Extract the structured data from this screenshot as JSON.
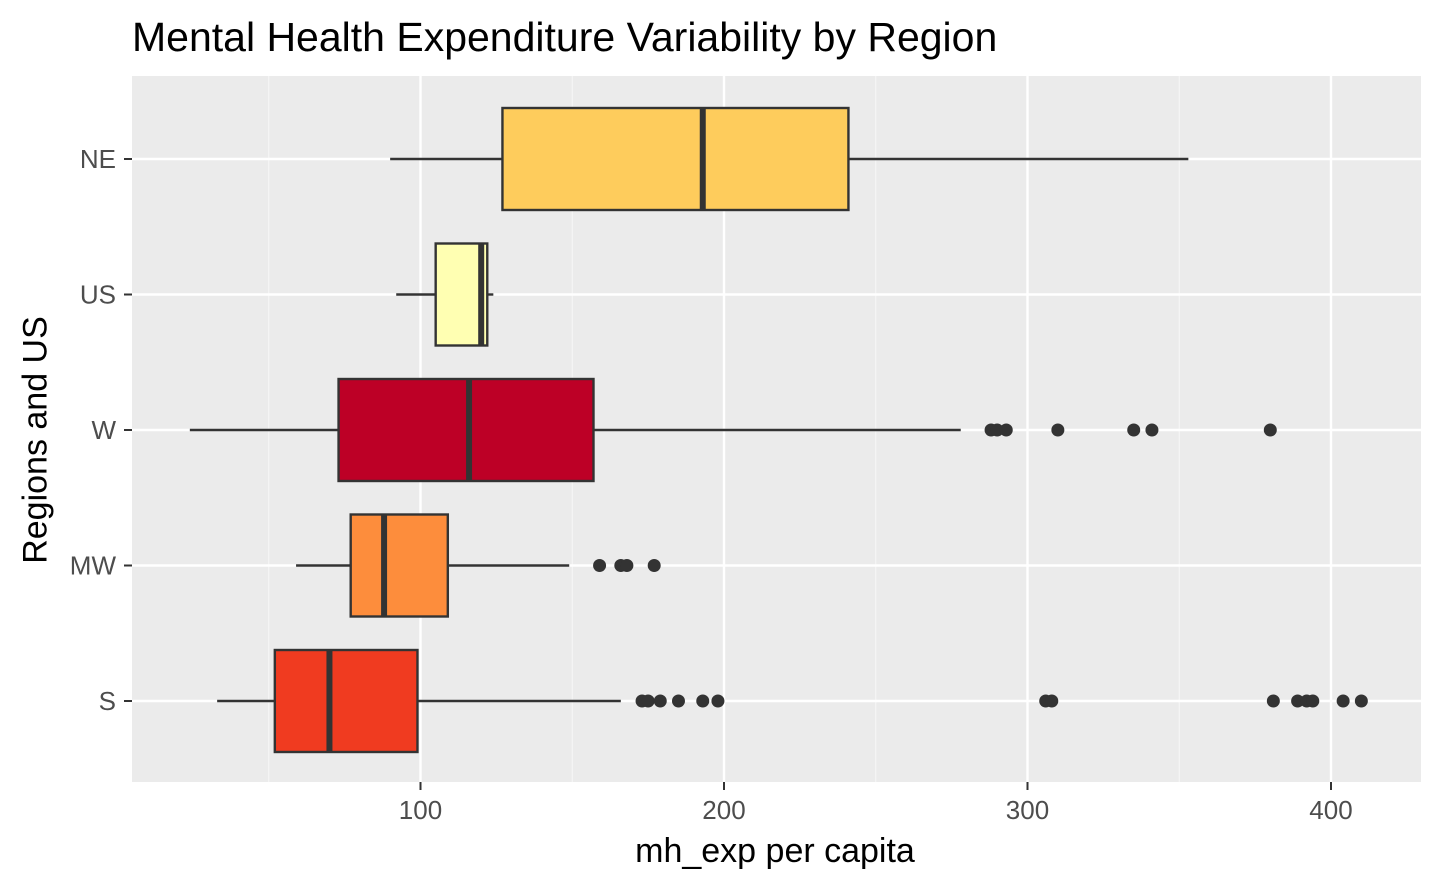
{
  "chart_data": {
    "type": "boxplot",
    "orientation": "horizontal",
    "title": "Mental Health Expenditure Variability by Region",
    "xlabel": "mh_exp per capita",
    "ylabel": "Regions and US",
    "xlim": [
      5,
      430
    ],
    "x_ticks": [
      100,
      200,
      300,
      400
    ],
    "x_minor_ticks": [
      50,
      150,
      250,
      350
    ],
    "grid": true,
    "legend": "none",
    "categories": [
      "NE",
      "US",
      "W",
      "MW",
      "S"
    ],
    "boxes": [
      {
        "category": "NE",
        "whisker_low": 90,
        "q1": 127,
        "median": 193,
        "q3": 241,
        "whisker_high": 353,
        "outliers": [],
        "color": "#FECC5C"
      },
      {
        "category": "US",
        "whisker_low": 92,
        "q1": 105,
        "median": 120,
        "q3": 122,
        "whisker_high": 124,
        "outliers": [],
        "color": "#FFFFB2"
      },
      {
        "category": "W",
        "whisker_low": 24,
        "q1": 73,
        "median": 116,
        "q3": 157,
        "whisker_high": 278,
        "outliers": [
          288,
          290,
          293,
          310,
          335,
          341,
          380
        ],
        "color": "#BD0026"
      },
      {
        "category": "MW",
        "whisker_low": 59,
        "q1": 77,
        "median": 88,
        "q3": 109,
        "whisker_high": 149,
        "outliers": [
          159,
          166,
          168,
          177
        ],
        "color": "#FD8D3C"
      },
      {
        "category": "S",
        "whisker_low": 33,
        "q1": 52,
        "median": 70,
        "q3": 99,
        "whisker_high": 166,
        "outliers": [
          173,
          175,
          179,
          185,
          193,
          198,
          306,
          308,
          381,
          389,
          392,
          394,
          404,
          410
        ],
        "color": "#F03B20"
      }
    ]
  }
}
